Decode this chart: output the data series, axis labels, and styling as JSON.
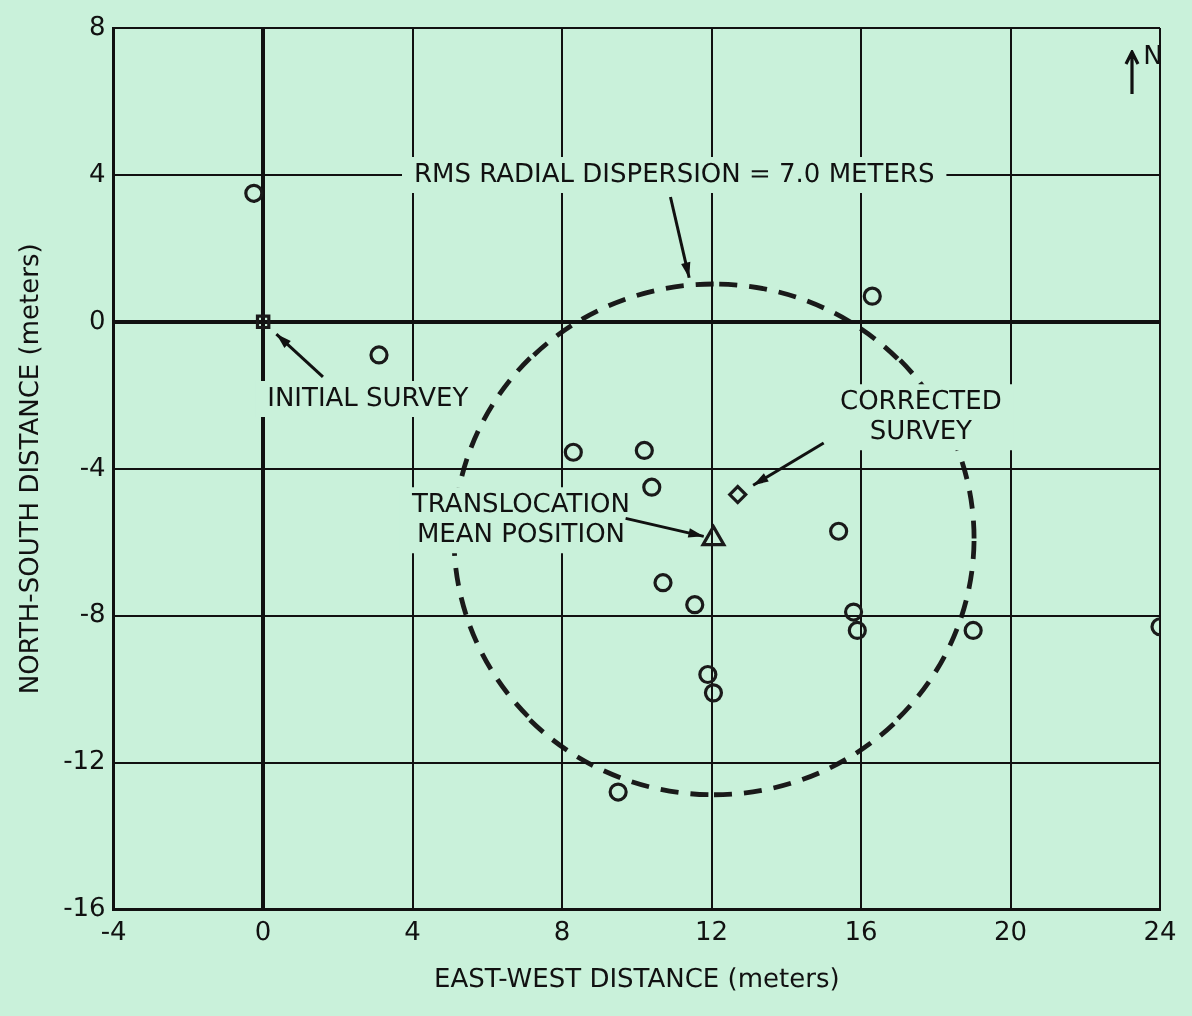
{
  "chart_data": {
    "type": "scatter",
    "xlabel": "EAST-WEST DISTANCE (meters)",
    "ylabel": "NORTH-SOUTH DISTANCE (meters)",
    "xlim": [
      -4,
      24
    ],
    "xticks": [
      -4,
      0,
      4,
      8,
      12,
      16,
      20,
      24
    ],
    "ylim": [
      -16,
      8
    ],
    "yticks": [
      -16,
      -12,
      -8,
      -4,
      0,
      4,
      8
    ],
    "grid": true,
    "legend": false,
    "series": [
      {
        "type": "scatter",
        "marker": "circle",
        "color": "#1a1a1a",
        "x": [
          -0.25,
          3.1,
          8.3,
          10.2,
          10.4,
          10.7,
          11.55,
          11.9,
          12.05,
          9.5,
          15.4,
          15.8,
          15.9,
          16.3,
          19.0,
          24.0
        ],
        "values": [
          3.5,
          -0.9,
          -3.55,
          -3.5,
          -4.5,
          -7.1,
          -7.7,
          -9.6,
          -10.1,
          -12.8,
          -5.7,
          -7.9,
          -8.4,
          0.7,
          -8.4,
          -8.3
        ]
      },
      {
        "type": "scatter",
        "marker": "square",
        "color": "#1a1a1a",
        "x": [
          0
        ],
        "values": [
          0
        ]
      },
      {
        "type": "scatter",
        "marker": "diamond",
        "color": "#1a1a1a",
        "x": [
          12.7
        ],
        "values": [
          -4.7
        ]
      },
      {
        "type": "scatter",
        "marker": "triangle",
        "color": "#1a1a1a",
        "x": [
          12.05
        ],
        "values": [
          -5.9
        ]
      }
    ],
    "annotations": [
      "RMS RADIAL DISPERSION = 7.0 METERS",
      {
        "text": "INITIAL SURVEY",
        "x": 0,
        "y": 0
      },
      {
        "text": "CORRECTED\nSURVEY",
        "x": 12.7,
        "y": -4.7
      },
      {
        "text": "TRANSLOCATION\nMEAN POSITION",
        "x": 12.05,
        "y": -5.9
      },
      "N"
    ]
  }
}
